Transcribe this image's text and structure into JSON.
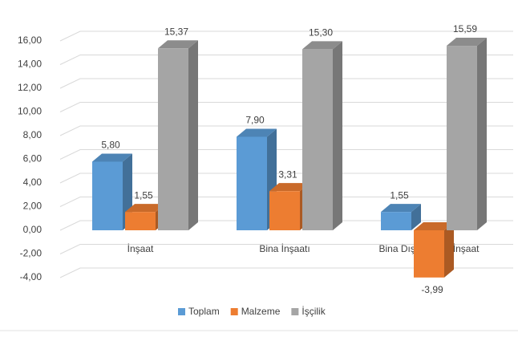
{
  "chart_data": {
    "type": "bar3d",
    "categories": [
      "İnşaat",
      "Bina İnşaatı",
      "Bina Dışı Yapılar İnşaat"
    ],
    "series": [
      {
        "name": "Toplam",
        "color": "#5b9bd5",
        "values": [
          5.8,
          7.9,
          1.55
        ],
        "value_labels": [
          "5,80",
          "7,90",
          "1,55"
        ]
      },
      {
        "name": "Malzeme",
        "color": "#ed7d31",
        "values": [
          1.55,
          3.31,
          -3.99
        ],
        "value_labels": [
          "1,55",
          "3,31",
          "-3,99"
        ]
      },
      {
        "name": "İşçilik",
        "color": "#a5a5a5",
        "values": [
          15.37,
          15.3,
          15.59
        ],
        "value_labels": [
          "15,37",
          "15,30",
          "15,59"
        ]
      }
    ],
    "ylim": [
      -4,
      16
    ],
    "yticks": [
      {
        "value": -4,
        "label": "-4,00"
      },
      {
        "value": -2,
        "label": "-2,00"
      },
      {
        "value": 0,
        "label": "0,00"
      },
      {
        "value": 2,
        "label": "2,00"
      },
      {
        "value": 4,
        "label": "4,00"
      },
      {
        "value": 6,
        "label": "6,00"
      },
      {
        "value": 8,
        "label": "8,00"
      },
      {
        "value": 10,
        "label": "10,00"
      },
      {
        "value": 12,
        "label": "12,00"
      },
      {
        "value": 14,
        "label": "14,00"
      },
      {
        "value": 16,
        "label": "16,00"
      }
    ],
    "grid": true,
    "legend": "bottom"
  }
}
